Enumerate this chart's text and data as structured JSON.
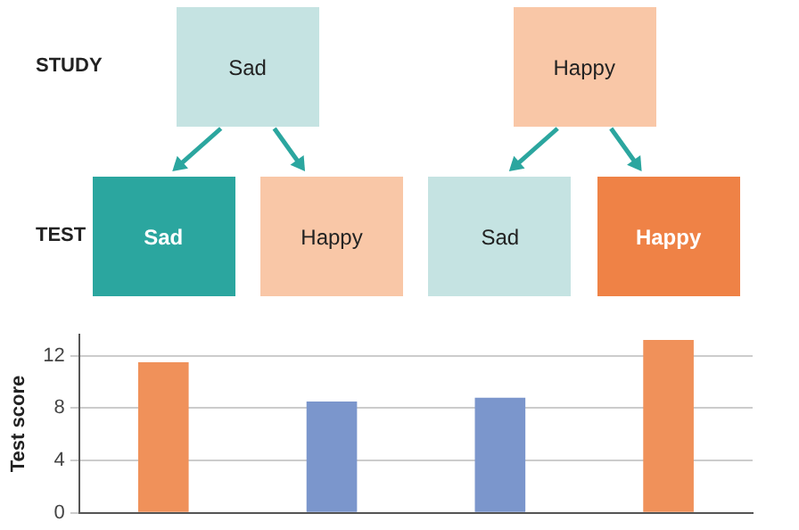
{
  "chart_data": {
    "type": "bar",
    "xlabel": "TEST",
    "ylabel": "Test score",
    "categories": [
      "Sad",
      "Happy",
      "Sad",
      "Happy"
    ],
    "values": [
      11.5,
      8.5,
      8.8,
      13.2
    ],
    "colors": [
      "#f0915a",
      "#7b96cc",
      "#7b96cc",
      "#f0915a"
    ],
    "ylim": [
      0,
      13.6
    ],
    "yticks": [
      0,
      4,
      8,
      12
    ],
    "grid": "y",
    "legend": false,
    "annotations": [
      "STUDY",
      "Sad",
      "Happy"
    ]
  }
}
